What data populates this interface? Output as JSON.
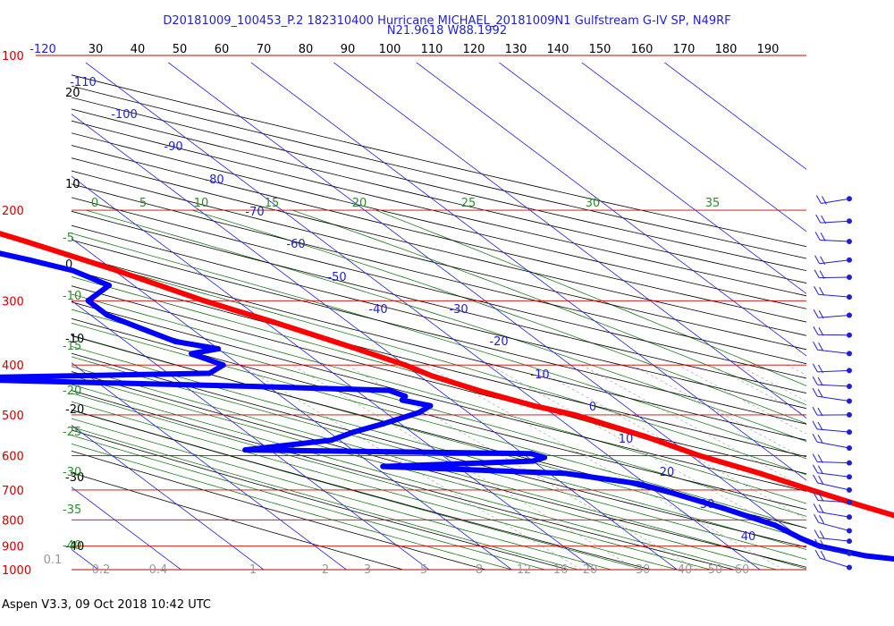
{
  "chart_data": {
    "type": "skew-t",
    "title": "D20181009_100453_P.2 182310400 Hurricane MICHAEL_20181009N1 Gulfstream G-IV SP, N49RF",
    "subtitle": "N21.9618 W88.1992",
    "footer": "Aspen V3.3, 09 Oct 2018  10:42 UTC",
    "pressure_levels": [
      "100",
      "200",
      "300",
      "400",
      "500",
      "600",
      "700",
      "800",
      "900",
      "1000"
    ],
    "top_scale_labels": [
      "-120",
      "30",
      "40",
      "50",
      "60",
      "70",
      "80",
      "90",
      "100",
      "110",
      "120",
      "130",
      "140",
      "150",
      "160",
      "170",
      "180",
      "190"
    ],
    "isotherm_labels": [
      "-110",
      "-100",
      "-90",
      "-80",
      "-70",
      "-60",
      "-50",
      "-40",
      "-30",
      "-20",
      "-10",
      "0",
      "10",
      "20",
      "30",
      "40"
    ],
    "mixing_ratio_labels": [
      "0.1",
      "0.2",
      "0.4",
      "1",
      "2",
      "3",
      "5",
      "8",
      "12",
      "16",
      "20",
      "30",
      "40",
      "50",
      "60"
    ],
    "left_numbers": [
      "20",
      "10",
      "0",
      "-10",
      "-20",
      "-30",
      "-40"
    ],
    "dry_adiabat_labels": [
      "0",
      "5",
      "10",
      "15",
      "20",
      "25",
      "30",
      "35"
    ],
    "left_green_labels": [
      "-5",
      "-10",
      "-15",
      "-20",
      "-25",
      "-30",
      "-35",
      "-40"
    ],
    "temperature_profile": [
      [
        180,
        -71
      ],
      [
        190,
        -67.5
      ],
      [
        200,
        -63.5
      ],
      [
        230,
        -56
      ],
      [
        260,
        -50
      ],
      [
        300,
        -44
      ],
      [
        330,
        -39
      ],
      [
        370,
        -33.5
      ],
      [
        400,
        -30
      ],
      [
        420,
        -28.5
      ],
      [
        450,
        -25
      ],
      [
        480,
        -21
      ],
      [
        500,
        -17.5
      ],
      [
        550,
        -12.5
      ],
      [
        600,
        -9
      ],
      [
        650,
        -4.5
      ],
      [
        700,
        -1
      ],
      [
        750,
        2.5
      ],
      [
        800,
        6
      ],
      [
        850,
        10
      ],
      [
        900,
        14
      ],
      [
        950,
        18
      ],
      [
        1000,
        23
      ]
    ],
    "dewpoint_profile": [
      [
        205,
        -73
      ],
      [
        220,
        -68
      ],
      [
        240,
        -62
      ],
      [
        250,
        -58.5
      ],
      [
        262,
        -55
      ],
      [
        280,
        -53
      ],
      [
        300,
        -58
      ],
      [
        320,
        -58
      ],
      [
        340,
        -56
      ],
      [
        360,
        -54
      ],
      [
        372,
        -50
      ],
      [
        380,
        -54
      ],
      [
        400,
        -52
      ],
      [
        415,
        -55
      ],
      [
        425,
        -90
      ],
      [
        440,
        -52
      ],
      [
        448,
        -36
      ],
      [
        460,
        -35
      ],
      [
        468,
        -36
      ],
      [
        480,
        -33.5
      ],
      [
        495,
        -36
      ],
      [
        520,
        -42
      ],
      [
        540,
        -47
      ],
      [
        560,
        -51
      ],
      [
        585,
        -63
      ],
      [
        595,
        -29
      ],
      [
        605,
        -28
      ],
      [
        615,
        -30
      ],
      [
        630,
        -49
      ],
      [
        650,
        -28
      ],
      [
        680,
        -21
      ],
      [
        700,
        -19
      ],
      [
        760,
        -14.5
      ],
      [
        820,
        -11
      ],
      [
        870,
        -10
      ],
      [
        900,
        -9
      ],
      [
        940,
        -5
      ],
      [
        960,
        -0.5
      ],
      [
        990,
        11
      ],
      [
        1000,
        20
      ]
    ],
    "wind_profile_levels": [
      "190",
      "210",
      "230",
      "250",
      "270",
      "295",
      "320",
      "350",
      "380",
      "410",
      "440",
      "470",
      "500",
      "540",
      "580",
      "620",
      "660",
      "700",
      "740",
      "790",
      "840",
      "880",
      "930",
      "990"
    ]
  },
  "colors": {
    "isobar": "#cc0000",
    "isotherm": "#1f1fd6",
    "dry_adiabat": "#000000",
    "moist_adiabat": "#006600",
    "mixing_ratio": "#999999",
    "temperature": "#ff0000",
    "dewpoint": "#0000ff",
    "wind_barb": "#1f1fd6"
  }
}
